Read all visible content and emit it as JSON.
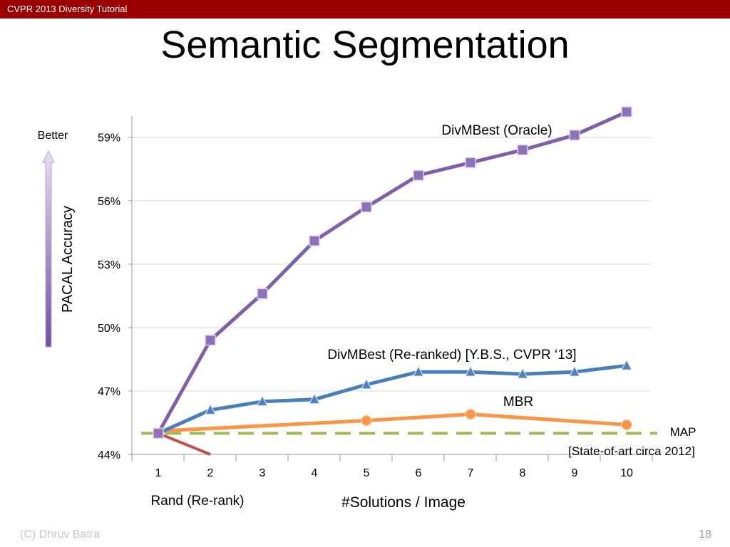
{
  "header": {
    "course": "CVPR 2013 Diversity Tutorial"
  },
  "slide": {
    "title": "Semantic Segmentation",
    "footer_author": "(C) Dhruv Batra",
    "page_number": "18"
  },
  "colors": {
    "header_bar": "#9b0000",
    "oracle": "#7f5fa8",
    "reranked": "#4a7ebb",
    "mbr": "#f79646",
    "map": "#9bbb59",
    "rand": "#c0504d"
  },
  "chart_data": {
    "type": "line",
    "x": [
      1,
      2,
      3,
      4,
      5,
      6,
      7,
      8,
      9,
      10
    ],
    "ylabel": "PACAL Accuracy",
    "xlabel": "#Solutions / Image",
    "y_arrow_label": "Better",
    "ylim": [
      44,
      60
    ],
    "yticks": [
      "44%",
      "47%",
      "50%",
      "53%",
      "56%",
      "59%"
    ],
    "ytick_values": [
      44,
      47,
      50,
      53,
      56,
      59
    ],
    "xticks": [
      "1",
      "2",
      "3",
      "4",
      "5",
      "6",
      "7",
      "8",
      "9",
      "10"
    ],
    "grid": true,
    "series": [
      {
        "key": "oracle",
        "name": "DivMBest (Oracle)",
        "marker": "square",
        "values": [
          45.0,
          49.4,
          51.6,
          54.1,
          55.7,
          57.2,
          57.8,
          58.4,
          59.1,
          60.2
        ]
      },
      {
        "key": "reranked",
        "name": "DivMBest (Re-ranked) [Y.B.S., CVPR ‘13]",
        "marker": "triangle",
        "values": [
          45.0,
          46.1,
          46.5,
          46.6,
          47.3,
          47.9,
          47.9,
          47.8,
          47.9,
          48.2
        ]
      },
      {
        "key": "mbr",
        "name": "MBR",
        "marker": "circle",
        "x": [
          1,
          5,
          7,
          10
        ],
        "values": [
          45.1,
          45.6,
          45.9,
          45.4
        ]
      },
      {
        "key": "map",
        "name": "MAP",
        "note": "[State-of-art circa 2012]",
        "style": "dashed",
        "x": [
          1,
          10
        ],
        "values": [
          45.0,
          45.0
        ]
      },
      {
        "key": "rand",
        "name": "Rand (Re-rank)",
        "x": [
          1,
          2
        ],
        "values": [
          45.0,
          44.0
        ]
      }
    ]
  }
}
